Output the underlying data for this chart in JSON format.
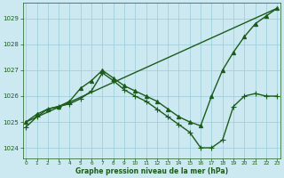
{
  "xlabel": "Graphe pression niveau de la mer (hPa)",
  "background_color": "#cce8f0",
  "grid_color": "#99ccd9",
  "line_color": "#1a5c1a",
  "xlim": [
    -0.3,
    23.3
  ],
  "ylim": [
    1023.6,
    1029.6
  ],
  "yticks": [
    1024,
    1025,
    1026,
    1027,
    1028,
    1029
  ],
  "xticks": [
    0,
    1,
    2,
    3,
    4,
    5,
    6,
    7,
    8,
    9,
    10,
    11,
    12,
    13,
    14,
    15,
    16,
    17,
    18,
    19,
    20,
    21,
    22,
    23
  ],
  "series": [
    {
      "x": [
        0,
        23
      ],
      "y": [
        1025.0,
        1029.4
      ],
      "marker": null,
      "markersize": 0,
      "linewidth": 1.0
    },
    {
      "x": [
        0,
        1,
        2,
        3,
        4,
        5,
        6,
        7,
        8,
        9,
        10,
        11,
        12,
        13,
        14,
        15,
        16,
        17,
        18,
        19,
        20,
        21,
        22,
        23
      ],
      "y": [
        1025.0,
        1025.3,
        1025.5,
        1025.6,
        1025.8,
        1026.3,
        1026.6,
        1027.0,
        1026.7,
        1026.4,
        1026.2,
        1026.0,
        1025.8,
        1025.5,
        1025.2,
        1025.0,
        1024.85,
        1026.0,
        1027.0,
        1027.7,
        1028.3,
        1028.8,
        1029.1,
        1029.4
      ],
      "marker": "^",
      "markersize": 3,
      "linewidth": 1.0
    },
    {
      "x": [
        0,
        1,
        2,
        3,
        4,
        5,
        6,
        7,
        8,
        9,
        10,
        11,
        12,
        13,
        14,
        15,
        16,
        17,
        18,
        19,
        20,
        21,
        22,
        23
      ],
      "y": [
        1024.8,
        1025.2,
        1025.5,
        1025.6,
        1025.7,
        1025.9,
        1026.2,
        1026.9,
        1026.6,
        1026.25,
        1026.0,
        1025.8,
        1025.5,
        1025.2,
        1024.9,
        1024.6,
        1024.0,
        1024.0,
        1024.3,
        1025.6,
        1026.0,
        1026.1,
        1026.0,
        1026.0
      ],
      "marker": "+",
      "markersize": 4,
      "linewidth": 1.0
    }
  ]
}
